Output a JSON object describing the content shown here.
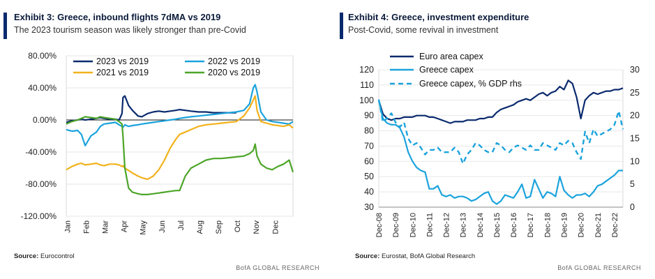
{
  "left": {
    "title": "Exhibit 3: Greece, inbound flights 7dMA vs 2019",
    "subtitle": "The 2023 tourism season was likely stronger than pre-Covid",
    "source_label": "Source:",
    "source_text": "Eurocontrol",
    "brand": "BofA GLOBAL RESEARCH"
  },
  "right": {
    "title": "Exhibit 4: Greece, investment expenditure",
    "subtitle": "Post-Covid, some revival in investment",
    "source_label": "Source:",
    "source_text": "Eurostat, BofA Global Research",
    "brand": "BofA GLOBAL RESEARCH"
  },
  "colors": {
    "navy": "#0a2a6e",
    "cyan": "#1ba3dc",
    "gold": "#f2b21c",
    "green": "#4ca528",
    "accent": "#0a2a6e"
  },
  "chart_data": [
    {
      "type": "line",
      "title": "Exhibit 3: Greece, inbound flights 7dMA vs 2019",
      "ylim": [
        -120,
        80
      ],
      "yticks": [
        "80.00%",
        "40.00%",
        "0.00%",
        "-40.00%",
        "-80.00%",
        "-120.00%"
      ],
      "yticks_values": [
        80,
        40,
        0,
        -40,
        -80,
        -120
      ],
      "xticks": [
        "Jan",
        "Feb",
        "Mar",
        "Apr",
        "May",
        "Jun",
        "Jul",
        "Aug",
        "Sep",
        "Oct",
        "Nov",
        "Dec"
      ],
      "legend": "top",
      "x": [
        0.0,
        0.3,
        0.6,
        0.8,
        1.0,
        1.3,
        1.6,
        1.8,
        2.0,
        2.3,
        2.6,
        2.8,
        2.95,
        3.0,
        3.1,
        3.3,
        3.5,
        3.8,
        4.0,
        4.3,
        4.6,
        4.9,
        5.2,
        5.5,
        5.8,
        6.0,
        6.3,
        6.6,
        7.0,
        7.4,
        7.8,
        8.2,
        8.6,
        9.0,
        9.4,
        9.7,
        9.9,
        10.0,
        10.1,
        10.3,
        10.6,
        10.9,
        11.2,
        11.5,
        11.8,
        12.0
      ],
      "series": [
        {
          "name": "2023 vs 2019",
          "color": "#0a2a6e",
          "values": [
            -3,
            -1,
            0,
            1,
            0,
            1,
            2,
            3,
            2,
            1,
            1,
            0,
            8,
            28,
            30,
            18,
            12,
            5,
            4,
            8,
            10,
            11,
            10,
            11,
            12,
            13,
            12,
            11,
            10,
            10,
            9,
            9,
            9,
            9,
            null,
            null,
            null,
            null,
            null,
            null,
            null,
            null,
            null,
            null,
            null,
            null
          ]
        },
        {
          "name": "2022 vs 2019",
          "color": "#1ba3dc",
          "values": [
            -12,
            -14,
            -13,
            -18,
            -32,
            -20,
            -15,
            -8,
            -5,
            -4,
            -3,
            -6,
            -8,
            -9,
            -6,
            -8,
            -7,
            -6,
            -5,
            -4,
            -3,
            -2,
            -1,
            0,
            1,
            2,
            3,
            4,
            5,
            6,
            7,
            8,
            9,
            10,
            12,
            20,
            40,
            44,
            35,
            10,
            0,
            -2,
            -3,
            -4,
            -5,
            -2
          ]
        },
        {
          "name": "2021 vs 2019",
          "color": "#f2b21c",
          "values": [
            -62,
            -58,
            -55,
            -54,
            -56,
            -55,
            -54,
            -56,
            -57,
            -55,
            -55,
            -56,
            -58,
            -57,
            -60,
            -63,
            -66,
            -70,
            -72,
            -74,
            -70,
            -62,
            -50,
            -35,
            -24,
            -18,
            -15,
            -12,
            -8,
            -6,
            -5,
            -4,
            -3,
            -2,
            5,
            15,
            25,
            30,
            12,
            -2,
            -4,
            -6,
            -7,
            -8,
            -6,
            -10
          ]
        },
        {
          "name": "2020 vs 2019",
          "color": "#4ca528",
          "values": [
            -5,
            -2,
            0,
            2,
            4,
            3,
            2,
            4,
            3,
            2,
            1,
            -2,
            -5,
            -20,
            -60,
            -85,
            -90,
            -92,
            -93,
            -93,
            -92,
            -91,
            -90,
            -89,
            -88,
            -88,
            -70,
            -60,
            -55,
            -50,
            -48,
            -48,
            -47,
            -46,
            -45,
            -42,
            -38,
            -30,
            -45,
            -55,
            -60,
            -62,
            -58,
            -55,
            -50,
            -65
          ]
        }
      ]
    },
    {
      "type": "line",
      "title": "Exhibit 4: Greece, investment expenditure",
      "ylim": [
        30,
        120
      ],
      "y2lim": [
        0,
        30
      ],
      "yticks": [
        "120",
        "110",
        "100",
        "90",
        "80",
        "70",
        "60",
        "50",
        "40",
        "30"
      ],
      "yticks_values": [
        120,
        110,
        100,
        90,
        80,
        70,
        60,
        50,
        40,
        30
      ],
      "y2ticks": [
        "30",
        "25",
        "20",
        "15",
        "10",
        "5",
        "0"
      ],
      "y2ticks_values": [
        30,
        25,
        20,
        15,
        10,
        5,
        0
      ],
      "xticks": [
        "Dec-08",
        "Dec-09",
        "Dec-10",
        "Dec-11",
        "Dec-12",
        "Dec-13",
        "Dec-14",
        "Dec-15",
        "Dec-16",
        "Dec-17",
        "Dec-18",
        "Dec-19",
        "Dec-20",
        "Dec-21",
        "Dec-22"
      ],
      "legend": "top-left",
      "x": [
        0.0,
        0.25,
        0.5,
        0.75,
        1.0,
        1.25,
        1.5,
        1.75,
        2.0,
        2.25,
        2.5,
        2.75,
        3.0,
        3.25,
        3.5,
        3.75,
        4.0,
        4.25,
        4.5,
        4.75,
        5.0,
        5.25,
        5.5,
        5.75,
        6.0,
        6.25,
        6.5,
        6.75,
        7.0,
        7.25,
        7.5,
        7.75,
        8.0,
        8.25,
        8.5,
        8.75,
        9.0,
        9.25,
        9.5,
        9.75,
        10.0,
        10.25,
        10.5,
        10.75,
        11.0,
        11.25,
        11.5,
        11.75,
        12.0,
        12.25,
        12.5,
        12.75,
        13.0,
        13.25,
        13.5,
        13.75,
        14.0,
        14.25,
        14.5
      ],
      "series": [
        {
          "name": "Euro area capex",
          "color": "#0a2a6e",
          "axis": "left",
          "style": "solid",
          "values": [
            100,
            91,
            88,
            87,
            88,
            88,
            89,
            89,
            89,
            90,
            90,
            90,
            89,
            89,
            88,
            87,
            86,
            85,
            86,
            86,
            86,
            87,
            87,
            87,
            88,
            88,
            89,
            89,
            92,
            94,
            95,
            96,
            97,
            99,
            100,
            101,
            100,
            102,
            104,
            105,
            103,
            105,
            106,
            109,
            107,
            113,
            111,
            102,
            88,
            100,
            103,
            105,
            104,
            105,
            106,
            106,
            107,
            107,
            108
          ]
        },
        {
          "name": "Greece capex",
          "color": "#1ba3dc",
          "axis": "left",
          "style": "solid",
          "values": [
            100,
            88,
            85,
            84,
            84,
            82,
            76,
            66,
            60,
            56,
            54,
            53,
            42,
            42,
            44,
            38,
            37,
            38,
            36,
            37,
            37,
            36,
            34,
            35,
            37,
            39,
            40,
            34,
            32,
            34,
            38,
            37,
            36,
            40,
            45,
            36,
            37,
            48,
            42,
            36,
            40,
            39,
            37,
            50,
            41,
            38,
            36,
            38,
            38,
            39,
            37,
            40,
            44,
            45,
            47,
            49,
            51,
            54,
            54
          ]
        },
        {
          "name": "Greece capex, % GDP rhs",
          "color": "#1ba3dc",
          "axis": "right",
          "style": "dashed",
          "values": [
            23.5,
            18.5,
            19.5,
            20.5,
            18.5,
            17.5,
            18.5,
            15,
            13.5,
            14,
            13,
            11.5,
            12.5,
            12.5,
            13,
            12,
            12,
            12,
            13,
            12,
            9.5,
            11.5,
            12.5,
            14,
            13.5,
            12.5,
            12,
            12,
            14,
            13.5,
            12.5,
            12,
            13,
            13.5,
            13,
            12.5,
            13.5,
            12.5,
            12.5,
            14,
            13.5,
            13,
            12.5,
            14,
            13.5,
            14.5,
            14,
            12,
            10.5,
            16.5,
            14,
            17,
            15.5,
            16,
            16.5,
            17,
            18,
            21,
            17
          ]
        }
      ]
    }
  ]
}
